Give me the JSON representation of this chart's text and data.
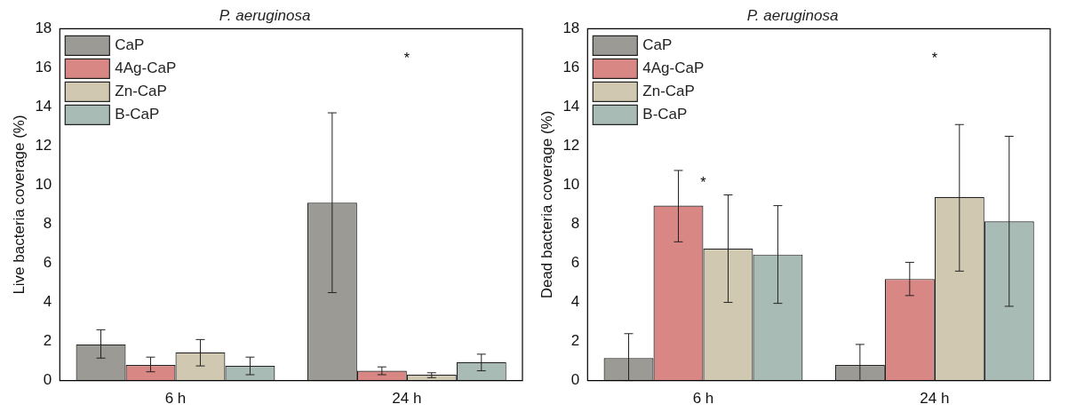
{
  "chart_data": [
    {
      "type": "bar",
      "title": "P. aeruginosa",
      "ylabel": "Live bacteria coverage (%)",
      "categories": [
        "6 h",
        "24 h"
      ],
      "ylim": [
        0,
        18
      ],
      "yticks": [
        0,
        2,
        4,
        6,
        8,
        10,
        12,
        14,
        16,
        18
      ],
      "grid": false,
      "legend": "top left",
      "series": [
        {
          "name": "CaP",
          "color": "#9b9a94",
          "values": [
            1.85,
            9.1
          ],
          "errors": [
            [
              1.15,
              2.6
            ],
            [
              4.5,
              13.7
            ]
          ]
        },
        {
          "name": "4Ag-CaP",
          "color": "#d98784",
          "values": [
            0.8,
            0.5
          ],
          "errors": [
            [
              0.45,
              1.2
            ],
            [
              0.3,
              0.7
            ]
          ]
        },
        {
          "name": "Zn-CaP",
          "color": "#d0c8b0",
          "values": [
            1.45,
            0.3
          ],
          "errors": [
            [
              0.75,
              2.1
            ],
            [
              0.15,
              0.4
            ]
          ]
        },
        {
          "name": "B-CaP",
          "color": "#a9bbb5",
          "values": [
            0.75,
            0.95
          ],
          "errors": [
            [
              0.3,
              1.2
            ],
            [
              0.5,
              1.35
            ]
          ]
        }
      ],
      "annotations": [
        "*"
      ]
    },
    {
      "type": "bar",
      "title": "P. aeruginosa",
      "ylabel": "Dead bacteria coverage (%)",
      "categories": [
        "6 h",
        "24 h"
      ],
      "ylim": [
        0,
        18
      ],
      "yticks": [
        0,
        2,
        4,
        6,
        8,
        10,
        12,
        14,
        16,
        18
      ],
      "grid": false,
      "legend": "top left",
      "series": [
        {
          "name": "CaP",
          "color": "#9b9a94",
          "values": [
            1.15,
            0.8
          ],
          "errors": [
            [
              0,
              2.4
            ],
            [
              0,
              1.85
            ]
          ]
        },
        {
          "name": "4Ag-CaP",
          "color": "#d98784",
          "values": [
            8.95,
            5.2
          ],
          "errors": [
            [
              7.1,
              10.75
            ],
            [
              4.35,
              6.05
            ]
          ]
        },
        {
          "name": "Zn-CaP",
          "color": "#d0c8b0",
          "values": [
            6.75,
            9.4
          ],
          "errors": [
            [
              4.0,
              9.5
            ],
            [
              5.6,
              13.1
            ]
          ]
        },
        {
          "name": "B-CaP",
          "color": "#a9bbb5",
          "values": [
            6.45,
            8.15
          ],
          "errors": [
            [
              3.95,
              8.95
            ],
            [
              3.8,
              12.5
            ]
          ]
        }
      ],
      "annotations": [
        "*",
        "*"
      ]
    }
  ]
}
